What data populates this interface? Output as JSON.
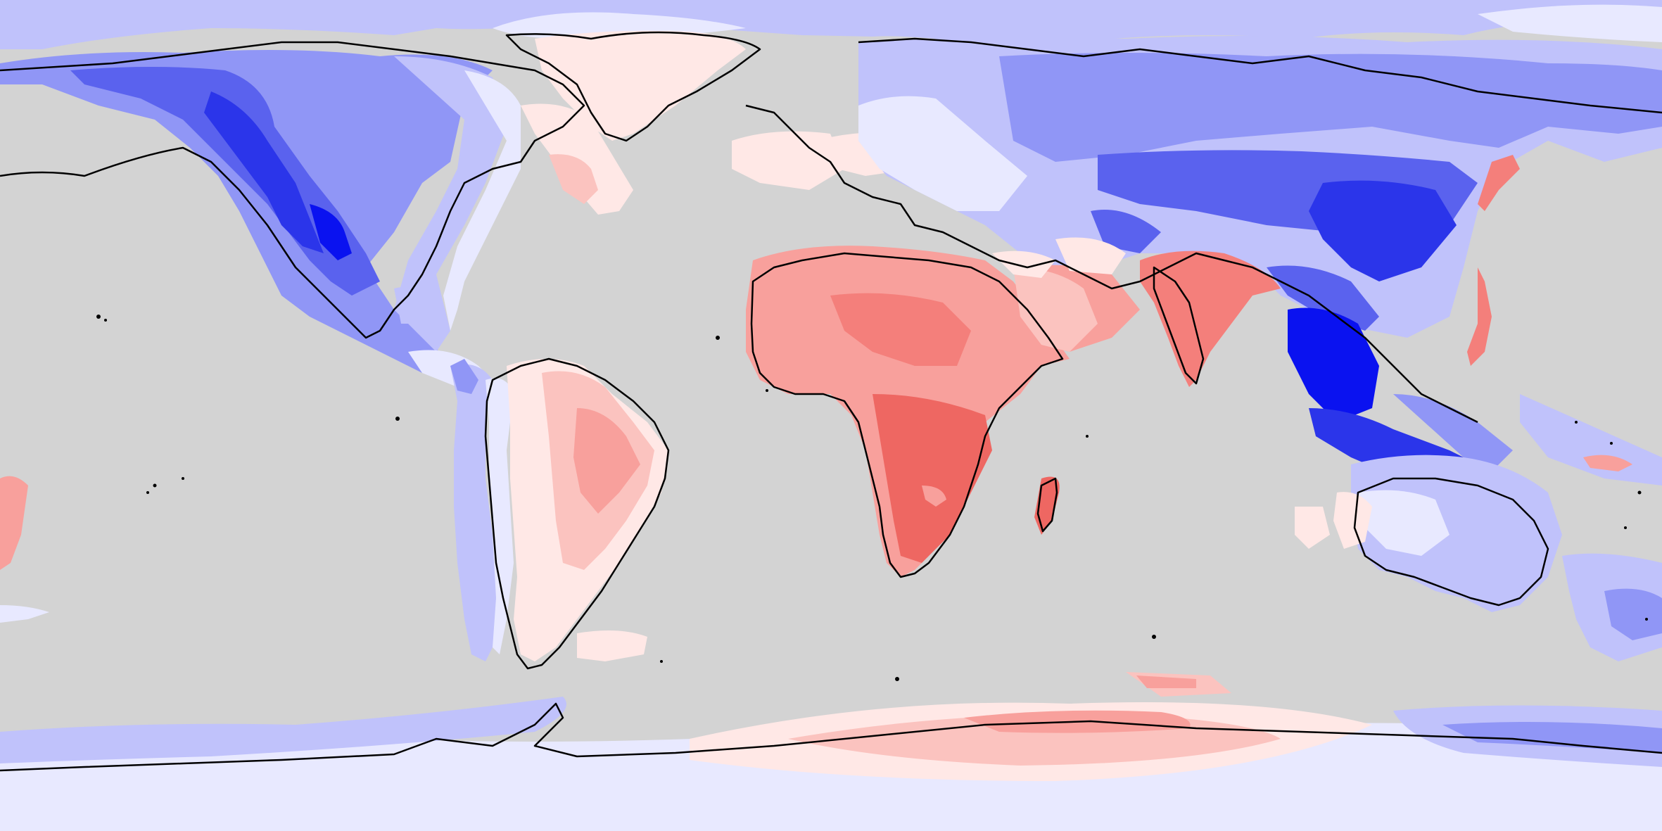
{
  "map": {
    "projection": "equirectangular",
    "lon_range": [
      -180,
      180
    ],
    "lat_range": [
      -90,
      90
    ],
    "ocean_color": "#d3d3d3",
    "coastline_color": "#000000",
    "legend_visible": false,
    "title_visible": false
  },
  "palette": {
    "blue_5": "#0a12f0",
    "blue_4": "#2b35ea",
    "blue_3": "#5a62ee",
    "blue_2": "#9096f6",
    "blue_1": "#c0c2fb",
    "blue_0": "#e8e9ff",
    "red_0": "#ffe8e6",
    "red_1": "#fbc3bf",
    "red_2": "#f8a09c",
    "red_3": "#f47f7b",
    "red_4": "#ee6762"
  },
  "regions": [
    {
      "name": "north-america",
      "tone": "blue"
    },
    {
      "name": "greenland",
      "tone": "red"
    },
    {
      "name": "north-atlantic",
      "tone": "red"
    },
    {
      "name": "europe-north-asia",
      "tone": "blue"
    },
    {
      "name": "east-asia",
      "tone": "blue"
    },
    {
      "name": "south-asia-india",
      "tone": "red"
    },
    {
      "name": "africa",
      "tone": "red"
    },
    {
      "name": "arabia",
      "tone": "red"
    },
    {
      "name": "south-america",
      "tone": "red"
    },
    {
      "name": "andes",
      "tone": "blue"
    },
    {
      "name": "australia",
      "tone": "blue"
    },
    {
      "name": "antarctica-west",
      "tone": "blue"
    },
    {
      "name": "antarctica-east",
      "tone": "red"
    }
  ]
}
